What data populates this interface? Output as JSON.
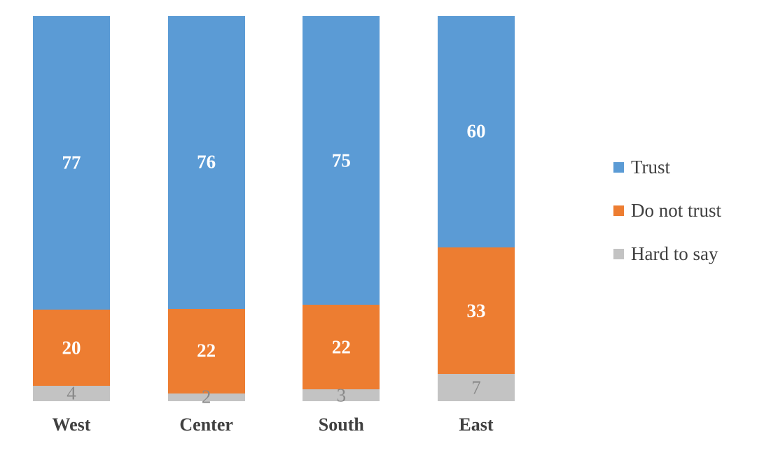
{
  "chart_data": {
    "type": "bar",
    "subtype": "stacked-column-percent",
    "title": "",
    "xlabel": "",
    "ylabel": "",
    "grid": false,
    "background": "#FFFFFF",
    "categories": [
      "West",
      "Center",
      "South",
      "East"
    ],
    "series": [
      {
        "name": "Trust",
        "color": "#5B9BD5",
        "values": [
          77,
          76,
          75,
          60
        ],
        "label_color": "#FFFFFF",
        "label_bold": true
      },
      {
        "name": "Do not trust",
        "color": "#ED7D31",
        "values": [
          20,
          22,
          22,
          33
        ],
        "label_color": "#FFFFFF",
        "label_bold": true
      },
      {
        "name": "Hard to say",
        "color": "#C3C3C3",
        "values": [
          4,
          2,
          3,
          7
        ],
        "label_color": "#898989",
        "label_bold": false
      }
    ],
    "stack_order_top_to_bottom": [
      "Trust",
      "Do not trust",
      "Hard to say"
    ],
    "legend": {
      "position": "right",
      "entries": [
        "Trust",
        "Do not trust",
        "Hard to say"
      ]
    },
    "axis": {
      "category_label_color": "#404040",
      "legend_text_color": "#404040"
    }
  }
}
